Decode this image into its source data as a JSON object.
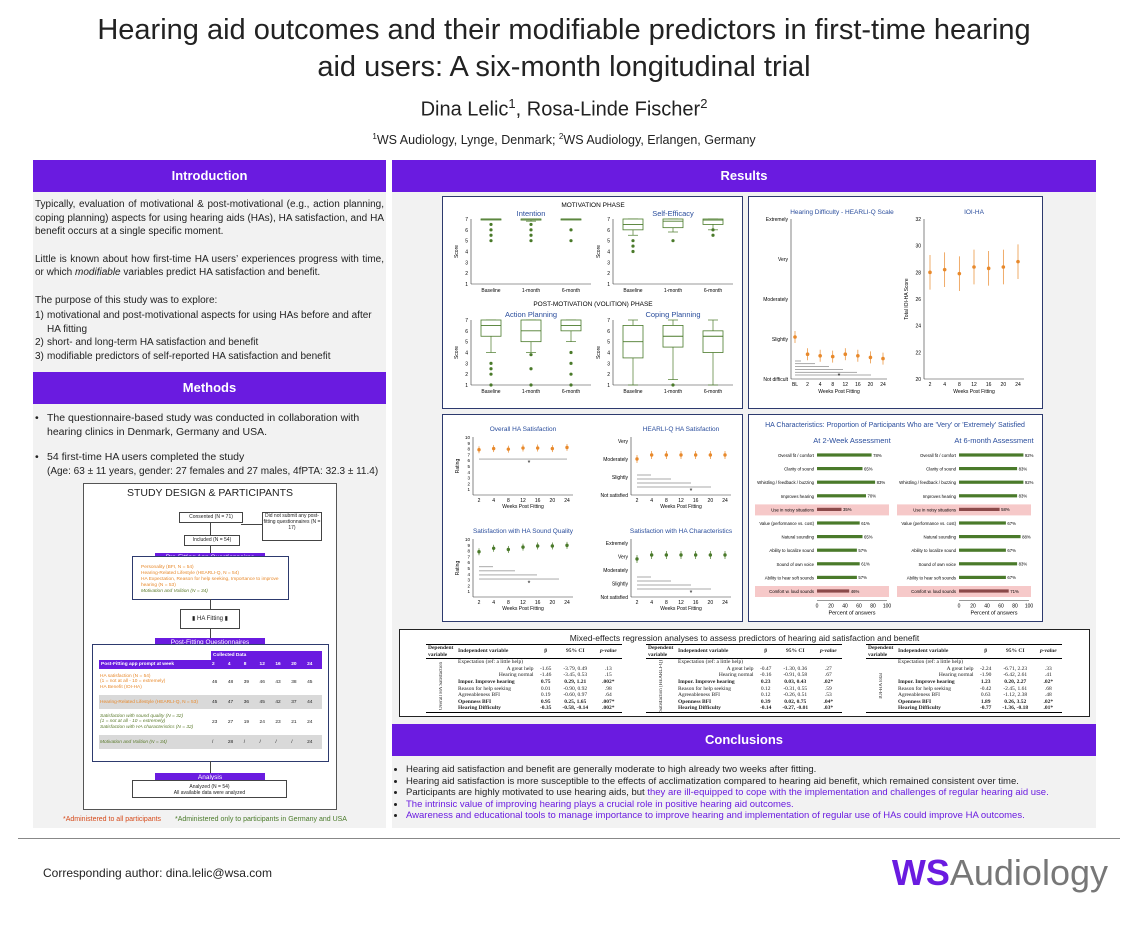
{
  "header": {
    "title_line1": "Hearing aid outcomes and their modifiable predictors in first-time hearing",
    "title_line2": "aid users: A six-month longitudinal trial",
    "author1": "Dina Lelic",
    "author2": "Rosa-Linde Fischer",
    "affil1": "WS Audiology, Lynge, Denmark;",
    "affil2": "WS Audiology, Erlangen, Germany"
  },
  "intro": {
    "heading": "Introduction",
    "p1": "Typically, evaluation of motivational & post-motivational (e.g., action planning, coping planning) aspects for using hearing aids (HAs), HA satisfaction, and HA benefit occurs at a single specific moment.",
    "p2a": "Little is known about how first-time HA users’ experiences progress with time, or which ",
    "p2b": "modifiable",
    "p2c": " variables predict HA satisfaction and benefit.",
    "p3": "The purpose of this study was to explore:",
    "items": [
      "motivational and post-motivational aspects for using HAs before and after HA fitting",
      "short- and long-term HA satisfaction and benefit",
      "modifiable predictors of self-reported HA satisfaction and benefit"
    ]
  },
  "methods": {
    "heading": "Methods",
    "b1": "The questionnaire-based study was conducted in collaboration with hearing clinics in Denmark, Germany and USA.",
    "b2": "54 first-time HA users completed the study",
    "b2sub": "(Age: 63 ± 11 years, gender: 27 females and 27 males, 4fPTA: 32.3 ± 11.4)",
    "design_title": "STUDY DESIGN & PARTICIPANTS",
    "consented": "Consented (N = 71)",
    "not_submit": "Did not submit any post-fitting questionnaires (N = 17)",
    "included": "Included (N = 54)",
    "pre_label": "Pre-Fitting App Questionnaires",
    "pre_items": [
      "Personality (BFI, N = 54)",
      "Hearing-Related Lifestyle (HEARLI-Q, N = 54)",
      "HA Expectation, Reason for help seeking, Importance to improve hearing (N = 53)",
      "Motivation and Volition (N = 34)"
    ],
    "fitting": "HA Fitting",
    "post_label": "Post-Fitting Questionnaires",
    "collected": "Collected Data",
    "week_hdr": "Post-Fitting app prompt at week",
    "weeks": [
      "2",
      "4",
      "8",
      "12",
      "16",
      "20",
      "24"
    ],
    "rows": [
      {
        "label": "HA satisfaction (N = 54)\n(1 = not at all - 10 = extremely)\nHA Benefit (IOI-HA)",
        "vals": [
          "46",
          "48",
          "39",
          "46",
          "43",
          "38",
          "45"
        ]
      },
      {
        "label": "Hearing-Related Lifestyle (HEARLI-Q, N = 53)",
        "vals": [
          "45",
          "47",
          "36",
          "45",
          "42",
          "37",
          "44"
        ]
      },
      {
        "label": "Satisfaction with sound quality (N = 32)\n(1 = not at all - 10 = extremely)\nSatisfaction with HA characteristics (N = 32)",
        "vals": [
          "23",
          "27",
          "19",
          "24",
          "23",
          "21",
          "24"
        ]
      },
      {
        "label": "Motivation and Volition (N = 34)",
        "vals": [
          "/",
          "28",
          "/",
          "/",
          "/",
          "/",
          "24"
        ]
      }
    ],
    "analysis": "Analysis",
    "analyzed1": "Analyzed (N = 54)",
    "analyzed2": "All available data were analyzed",
    "foot1": "*Administered to all participants",
    "foot2": "*Administered only to participants in Germany and USA"
  },
  "results": {
    "heading": "Results",
    "motivation_phase": "MOTIVATION PHASE",
    "post_phase": "POST-MOTIVATION (VOLITION) PHASE",
    "box_charts": [
      {
        "title": "Intention",
        "groups": [
          {
            "q1": 7,
            "med": 7,
            "q3": 7,
            "lo": 7,
            "hi": 7,
            "out": [
              5,
              5.5,
              6,
              6.5
            ]
          },
          {
            "q1": 6.9,
            "med": 7,
            "q3": 7,
            "lo": 6.8,
            "hi": 7,
            "out": [
              5,
              5.5,
              6,
              6.5
            ]
          },
          {
            "q1": 7,
            "med": 7,
            "q3": 7,
            "lo": 7,
            "hi": 7,
            "out": [
              5,
              6
            ]
          }
        ]
      },
      {
        "title": "Self-Efficacy",
        "groups": [
          {
            "q1": 6,
            "med": 6.5,
            "q3": 7,
            "lo": 5.5,
            "hi": 7,
            "out": [
              4,
              4.5,
              5
            ]
          },
          {
            "q1": 6.2,
            "med": 6.8,
            "q3": 7,
            "lo": 5.8,
            "hi": 7,
            "out": [
              5
            ]
          },
          {
            "q1": 6.5,
            "med": 6.9,
            "q3": 7,
            "lo": 6,
            "hi": 7,
            "out": [
              5.5,
              6
            ]
          }
        ]
      },
      {
        "title": "Action Planning",
        "groups": [
          {
            "q1": 5.5,
            "med": 6.5,
            "q3": 7,
            "lo": 4,
            "hi": 7,
            "out": [
              1,
              2,
              2.5,
              3
            ]
          },
          {
            "q1": 5,
            "med": 6,
            "q3": 7,
            "lo": 4,
            "hi": 7,
            "out": [
              1,
              2.5,
              3.8
            ]
          },
          {
            "q1": 6,
            "med": 6.5,
            "q3": 7,
            "lo": 5,
            "hi": 7,
            "out": [
              1,
              2,
              3,
              4
            ]
          }
        ]
      },
      {
        "title": "Coping Planning",
        "groups": [
          {
            "q1": 3.5,
            "med": 5,
            "q3": 6.5,
            "lo": 1,
            "hi": 7,
            "out": []
          },
          {
            "q1": 4.5,
            "med": 5.5,
            "q3": 6.5,
            "lo": 1.5,
            "hi": 7,
            "out": [
              1
            ]
          },
          {
            "q1": 4,
            "med": 5.5,
            "q3": 6,
            "lo": 1,
            "hi": 7,
            "out": []
          }
        ]
      }
    ],
    "box_categories": [
      "Baseline",
      "1-month",
      "6-month"
    ],
    "score_label": "Score",
    "hd_title": "Hearing Difficulty - HEARLI-Q Scale",
    "hd_levels": [
      "Extremely",
      "Very",
      "Moderately",
      "Slightly",
      "Not difficult"
    ],
    "hd_x": [
      "BL",
      "2",
      "4",
      "8",
      "12",
      "16",
      "20",
      "24"
    ],
    "hd_vals": [
      1.05,
      0.62,
      0.58,
      0.56,
      0.62,
      0.58,
      0.54,
      0.51
    ],
    "ioi_title": "IOI-HA",
    "ioi_ylabel": "Total IOI-HA Score",
    "ioi_x": [
      "2",
      "4",
      "8",
      "12",
      "16",
      "20",
      "24"
    ],
    "ioi_vals": [
      28.0,
      28.2,
      27.9,
      28.4,
      28.3,
      28.4,
      28.8
    ],
    "ioi_yticks": [
      "20",
      "22",
      "24",
      "26",
      "28",
      "30",
      "32"
    ],
    "weeks_label": "Weeks Post Fitting",
    "sat_overall_title": "Overall HA Satisfaction",
    "sat_hearli_title": "HEARLI-Q HA Satisfaction",
    "sat_sound_title": "Satisfaction with HA Sound Quality",
    "sat_char_title": "Satisfaction with HA Characteristics",
    "rating_label": "Rating",
    "sat_x": [
      "2",
      "4",
      "8",
      "12",
      "16",
      "20",
      "24"
    ],
    "sat_overall": [
      7.8,
      8.0,
      7.9,
      8.1,
      8.1,
      8.0,
      8.2
    ],
    "sat_sound": [
      7.8,
      8.4,
      8.2,
      8.6,
      8.8,
      8.8,
      8.9
    ],
    "sat_levels": [
      "Very",
      "Moderately",
      "Slightly",
      "Not satisfied"
    ],
    "sat_levels2": [
      "Extremely",
      "Very",
      "Moderately",
      "Slightly",
      "Not satisfied"
    ],
    "char_title": "HA Characteristics: Proportion of Participants Who are 'Very' or 'Extremely' Satisfied",
    "char_2w": "At 2-Week Assessment",
    "char_6m": "At 6-month Assessment",
    "char_xlabel": "Percent of answers",
    "char_items": [
      "Overall fit / comfort",
      "Clarity of sound",
      "Whistling / feedback / buzzing",
      "Improves hearing",
      "Use in noisy situations",
      "Value (performance vs. cost)",
      "Natural sounding",
      "Ability to localize sound",
      "Sound of own voice",
      "Ability to hear soft sounds",
      "Comfort w. loud sounds"
    ],
    "char_2w_vals": [
      78,
      65,
      83,
      70,
      35,
      61,
      65,
      57,
      61,
      57,
      46
    ],
    "char_6m_vals": [
      92,
      83,
      92,
      83,
      58,
      67,
      88,
      67,
      83,
      67,
      71
    ],
    "char_highlight": [
      4,
      10
    ],
    "reg_title": "Mixed-effects regression analyses to assess predictors of hearing aid satisfaction and benefit",
    "reg_hdr": [
      "Dependent variable",
      "Independent variable",
      "β",
      "95% CI",
      "p-value"
    ],
    "reg_tables": [
      {
        "dep": "Overall HA Satisfaction",
        "rows": [
          [
            "Expectation (ref: a little help)",
            "",
            "",
            ""
          ],
          [
            "A great help",
            "-1.65",
            "-3.79, 0.49",
            ".13"
          ],
          [
            "Hearing normal",
            "-1.46",
            "-3.45, 0.53",
            ".15"
          ],
          [
            "Impor. Improve hearing",
            "0.75",
            "0.29, 1.21",
            ".002*"
          ],
          [
            "Reason for help seeking",
            "0.01",
            "-0.90, 0.92",
            ".98"
          ],
          [
            "Agreeableness BFI",
            "0.19",
            "-0.60, 0.97",
            ".64"
          ],
          [
            "Openness BFI",
            "0.95",
            "0.25, 1.65",
            ".007*"
          ],
          [
            "Hearing Difficulty",
            "-0.35",
            "-0.58, -0.14",
            ".002*"
          ]
        ]
      },
      {
        "dep": "Satisfaction (HEARLI-Q)",
        "rows": [
          [
            "Expectation (ref: a little help)",
            "",
            "",
            ""
          ],
          [
            "A great help",
            "-0.47",
            "-1.30, 0.36",
            ".27"
          ],
          [
            "Hearing normal",
            "-0.16",
            "-0.91, 0.58",
            ".67"
          ],
          [
            "Impor. Improve hearing",
            "0.23",
            "0.03, 0.43",
            ".02*"
          ],
          [
            "Reason for help seeking",
            "0.12",
            "-0.31, 0.55",
            ".59"
          ],
          [
            "Agreeableness BFI",
            "0.12",
            "-0.26, 0.51",
            ".53"
          ],
          [
            "Openness BFI",
            "0.39",
            "0.02, 0.75",
            ".04*"
          ],
          [
            "Hearing Difficulty",
            "-0.14",
            "-0.27, -0.01",
            ".03*"
          ]
        ]
      },
      {
        "dep": "IOI-HA total",
        "rows": [
          [
            "Expectation (ref: a little help)",
            "",
            "",
            ""
          ],
          [
            "A great help",
            "-2.24",
            "-6.71, 2.23",
            ".33"
          ],
          [
            "Hearing normal",
            "-1.90",
            "-6.42, 2.61",
            ".41"
          ],
          [
            "Impor. Improve hearing",
            "1.23",
            "0.20, 2.27",
            ".02*"
          ],
          [
            "Reason for help seeking",
            "-0.42",
            "-2.45, 1.61",
            ".68"
          ],
          [
            "Agreeableness BFI",
            "0.63",
            "-1.12, 2.38",
            ".48"
          ],
          [
            "Openness BFI",
            "1.89",
            "0.26, 3.52",
            ".02*"
          ],
          [
            "Hearing Difficulty",
            "-0.77",
            "-1.36, -0.18",
            ".01*"
          ]
        ]
      }
    ]
  },
  "conclusions": {
    "heading": "Conclusions",
    "items": [
      {
        "text": "Hearing aid satisfaction and benefit are generally moderate to high already two weeks after fitting.",
        "accent": ""
      },
      {
        "text": "Hearing aid satisfaction is more susceptible to the effects of acclimatization compared to hearing aid benefit, which remained consistent over time.",
        "accent": ""
      },
      {
        "text": "Participants are highly motivated to use hearing aids, but ",
        "accent": "they are ill-equipped to cope with the implementation and challenges of regular hearing aid use."
      },
      {
        "text": "",
        "accent": "The intrinsic value of improving hearing plays a crucial role in positive hearing aid outcomes."
      },
      {
        "text": "",
        "accent": "Awareness and educational tools to manage importance to improve hearing and implementation of regular use of HAs could improve HA outcomes."
      }
    ]
  },
  "footer": {
    "corr": "Corresponding author: dina.lelic@wsa.com",
    "logo_a": "WS",
    "logo_b": "Audiology"
  },
  "colors": {
    "accent": "#6a1be0",
    "orange": "#e8892b",
    "green": "#4a7a2a",
    "navy": "#2d3a6e"
  }
}
